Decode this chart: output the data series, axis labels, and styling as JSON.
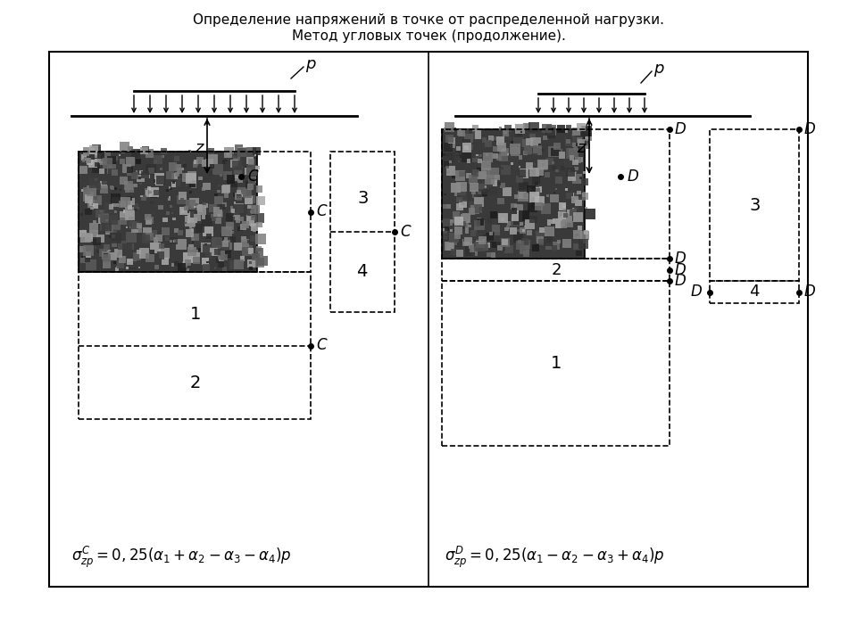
{
  "title_line1": "Определение напряжений в точке от распределенной нагрузки.",
  "title_line2": "Метод угловых точек (продолжение).",
  "formula_left": "$\\sigma_{zp}^{C} = 0,25(\\alpha_1 + \\alpha_2 - \\alpha_3 - \\alpha_4)p$",
  "formula_right": "$\\sigma_{zp}^{D} = 0,25(\\alpha_1 - \\alpha_2 - \\alpha_3 + \\alpha_4)p$",
  "bg_color": "#ffffff"
}
